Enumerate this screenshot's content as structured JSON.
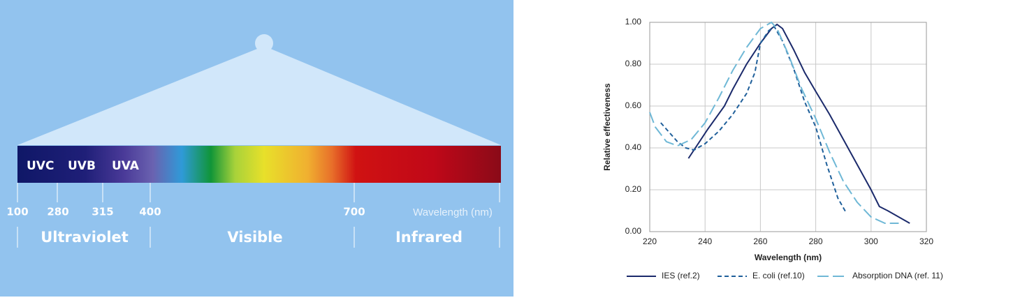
{
  "diagram": {
    "bands": [
      "UVC",
      "UVB",
      "UVA"
    ],
    "ticks": [
      "100",
      "280",
      "315",
      "400",
      "700"
    ],
    "axis_label": "Wavelength (nm)",
    "regions": [
      "Ultraviolet",
      "Visible",
      "Infrared"
    ]
  },
  "chart_data": {
    "type": "line",
    "x_label": "Wavelength (nm)",
    "y_label": "Relative effectiveness",
    "xlim": [
      220,
      320
    ],
    "xticks": [
      220,
      240,
      260,
      280,
      300,
      320
    ],
    "ylim": [
      0,
      1
    ],
    "yticks": [
      {
        "value": 0,
        "label": "0.00"
      },
      {
        "value": 0.2,
        "label": "0.20"
      },
      {
        "value": 0.4,
        "label": "0.40"
      },
      {
        "value": 0.6,
        "label": "0.60"
      },
      {
        "value": 0.8,
        "label": "0.80"
      },
      {
        "value": 1,
        "label": "1.00"
      }
    ],
    "grid": true,
    "legend": "bottom",
    "series": [
      {
        "name": "IES (ref.2)",
        "color": "#1b2a6b",
        "line_style": "solid",
        "x": [
          234,
          241,
          247,
          250,
          255,
          260,
          264,
          266,
          268,
          272,
          276,
          280,
          285,
          290,
          295,
          300,
          303,
          306,
          314
        ],
        "values": [
          0.35,
          0.49,
          0.6,
          0.68,
          0.8,
          0.9,
          0.97,
          0.99,
          0.97,
          0.87,
          0.76,
          0.67,
          0.56,
          0.44,
          0.32,
          0.2,
          0.12,
          0.1,
          0.04
        ]
      },
      {
        "name": "E. coli (ref.10)",
        "color": "#1f5f9a",
        "line_style": "dashed",
        "x": [
          224,
          230,
          233,
          236,
          240,
          245,
          250,
          255,
          258,
          260,
          263,
          265,
          268,
          272,
          276,
          280,
          284,
          288,
          291
        ],
        "values": [
          0.52,
          0.43,
          0.4,
          0.39,
          0.42,
          0.48,
          0.56,
          0.66,
          0.76,
          0.9,
          0.96,
          0.98,
          0.91,
          0.78,
          0.62,
          0.5,
          0.32,
          0.16,
          0.09
        ]
      },
      {
        "name": "Absorption DNA (ref. 11)",
        "color": "#6fb8d6",
        "line_style": "longdash",
        "x": [
          220,
          222,
          226,
          230,
          235,
          240,
          245,
          250,
          255,
          260,
          264,
          266,
          270,
          275,
          280,
          285,
          290,
          295,
          300,
          305,
          310
        ],
        "values": [
          0.57,
          0.5,
          0.43,
          0.41,
          0.44,
          0.52,
          0.64,
          0.77,
          0.88,
          0.97,
          1.0,
          0.97,
          0.85,
          0.68,
          0.54,
          0.38,
          0.24,
          0.14,
          0.07,
          0.04,
          0.04
        ]
      }
    ]
  }
}
